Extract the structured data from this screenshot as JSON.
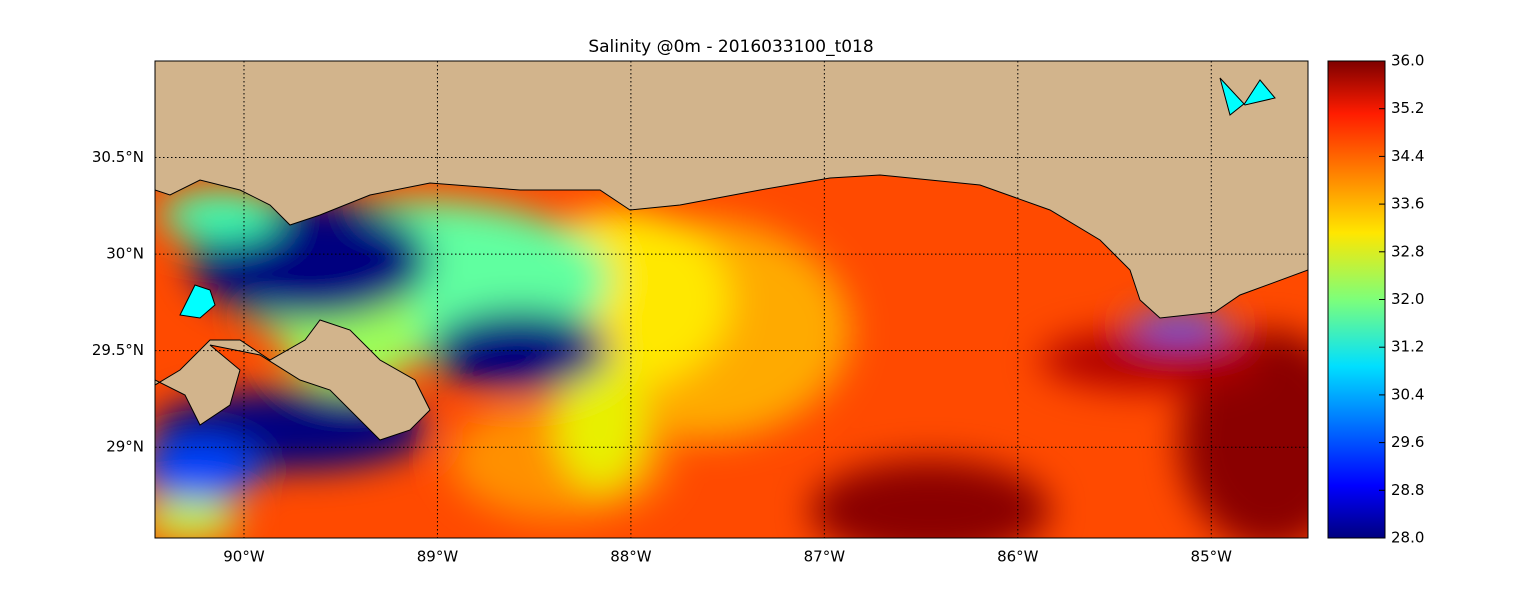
{
  "chart_data": {
    "type": "map",
    "title": "Salinity @0m - 2016033100_t018",
    "xlim": [
      -90.46,
      -84.5
    ],
    "ylim": [
      28.53,
      31.0
    ],
    "xticks": [
      {
        "value": -90,
        "label": "90°W"
      },
      {
        "value": -89,
        "label": "89°W"
      },
      {
        "value": -88,
        "label": "88°W"
      },
      {
        "value": -87,
        "label": "87°W"
      },
      {
        "value": -86,
        "label": "86°W"
      },
      {
        "value": -85,
        "label": "85°W"
      }
    ],
    "yticks": [
      {
        "value": 29,
        "label": "29°N"
      },
      {
        "value": 29.5,
        "label": "29.5°N"
      },
      {
        "value": 30,
        "label": "30°N"
      },
      {
        "value": 30.5,
        "label": "30.5°N"
      }
    ],
    "grid": true,
    "colorbar": {
      "lim": [
        28,
        36
      ],
      "ticks": [
        {
          "value": 28,
          "label": "28.0"
        },
        {
          "value": 28.8,
          "label": "28.8"
        },
        {
          "value": 29.6,
          "label": "29.6"
        },
        {
          "value": 30.4,
          "label": "30.4"
        },
        {
          "value": 31.2,
          "label": "31.2"
        },
        {
          "value": 32,
          "label": "32.0"
        },
        {
          "value": 32.8,
          "label": "32.8"
        },
        {
          "value": 33.6,
          "label": "33.6"
        },
        {
          "value": 34.4,
          "label": "34.4"
        },
        {
          "value": 35.2,
          "label": "35.2"
        },
        {
          "value": 36,
          "label": "36.0"
        }
      ]
    }
  }
}
